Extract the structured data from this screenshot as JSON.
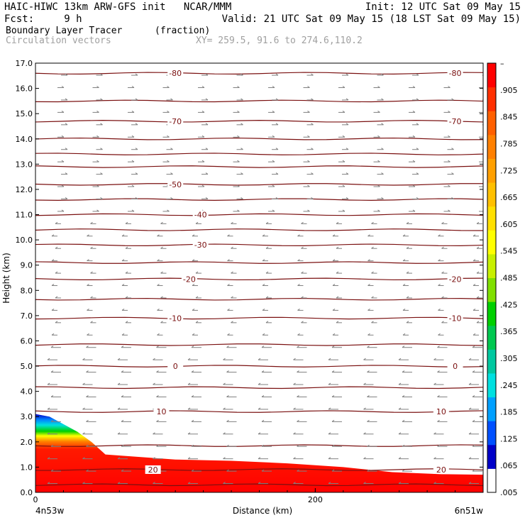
{
  "header": {
    "line1_left": "HAIC-HIWC 13km ARW-GFS init   NCAR/MMM",
    "line1_right": "Init: 12 UTC Sat 09 May 15",
    "line2_left": "Fcst:     9 h",
    "line2_right": "Valid: 21 UTC Sat 09 May 15 (18 LST Sat 09 May 15)",
    "field_name": "Boundary Layer Tracer",
    "field_units": "(fraction)",
    "vector_name": "Circulation vectors",
    "xy_info": "XY= 259.5, 91.6 to 274.6,110.2"
  },
  "colors": {
    "contour": "#7a1010",
    "vector": "#808080",
    "colorbar": [
      "#ffffff",
      "#0000c8",
      "#0050ff",
      "#00a0ff",
      "#00e0e0",
      "#00c8a0",
      "#00c850",
      "#00d000",
      "#80e000",
      "#c8f000",
      "#ffff00",
      "#ffe000",
      "#ffc000",
      "#ffa000",
      "#ff8000",
      "#ff6000",
      "#ff3000",
      "#ff0000"
    ]
  },
  "chart_data": {
    "type": "cross-section",
    "ylabel": "Height (km)",
    "xlabel": "Distance (km)",
    "x_left_label": "4n53w",
    "x_right_label": "6n51w",
    "xlim": [
      0,
      320
    ],
    "ylim": [
      0,
      17
    ],
    "x_ticks": [
      {
        "value": 0,
        "label": "0"
      },
      {
        "value": 200,
        "label": "200"
      }
    ],
    "y_ticks": [
      "0.0",
      "1.0",
      "2.0",
      "3.0",
      "4.0",
      "5.0",
      "6.0",
      "7.0",
      "8.0",
      "9.0",
      "10.0",
      "11.0",
      "12.0",
      "13.0",
      "14.0",
      "15.0",
      "16.0",
      "17.0"
    ],
    "colorbar_labels": [
      "–",
      ".905",
      ".845",
      ".785",
      ".725",
      ".665",
      ".605",
      ".545",
      ".485",
      ".425",
      ".365",
      ".305",
      ".245",
      ".185",
      ".125",
      ".065",
      ".005"
    ],
    "isotherms": [
      {
        "label": "-80",
        "height_km": 16.6,
        "label_x": [
          100,
          300
        ]
      },
      {
        "label": "",
        "height_km": 15.5
      },
      {
        "label": "-70",
        "height_km": 14.7,
        "label_x": [
          100,
          300
        ]
      },
      {
        "label": "",
        "height_km": 14.0
      },
      {
        "label": "",
        "height_km": 13.4
      },
      {
        "label": "",
        "height_km": 12.9
      },
      {
        "label": "-50",
        "height_km": 12.2,
        "label_x": [
          100
        ]
      },
      {
        "label": "",
        "height_km": 11.6
      },
      {
        "label": "-40",
        "height_km": 11.0,
        "label_x": [
          118
        ]
      },
      {
        "label": "",
        "height_km": 10.4
      },
      {
        "label": "-30",
        "height_km": 9.8,
        "label_x": [
          118
        ]
      },
      {
        "label": "",
        "height_km": 9.1
      },
      {
        "label": "-20",
        "height_km": 8.45,
        "label_x": [
          110,
          300
        ]
      },
      {
        "label": "",
        "height_km": 7.65
      },
      {
        "label": "-10",
        "height_km": 6.9,
        "label_x": [
          100,
          300
        ]
      },
      {
        "label": "",
        "height_km": 5.85
      },
      {
        "label": "0",
        "height_km": 5.0,
        "label_x": [
          100,
          300
        ]
      },
      {
        "label": "",
        "height_km": 4.15
      },
      {
        "label": "10",
        "height_km": 3.2,
        "label_x": [
          90,
          290
        ]
      },
      {
        "label": "",
        "height_km": 1.85
      },
      {
        "label": "20",
        "height_km": 0.9,
        "label_x": [
          84,
          290
        ]
      },
      {
        "label": "",
        "height_km": 0.3
      }
    ],
    "boundary_layer_top": [
      [
        0,
        3.1
      ],
      [
        10,
        3.0
      ],
      [
        20,
        2.7
      ],
      [
        30,
        2.4
      ],
      [
        40,
        2.0
      ],
      [
        50,
        1.5
      ],
      [
        100,
        1.3
      ],
      [
        140,
        1.25
      ],
      [
        180,
        1.15
      ],
      [
        220,
        1.0
      ],
      [
        255,
        0.8
      ],
      [
        290,
        0.72
      ],
      [
        320,
        0.7
      ]
    ]
  }
}
